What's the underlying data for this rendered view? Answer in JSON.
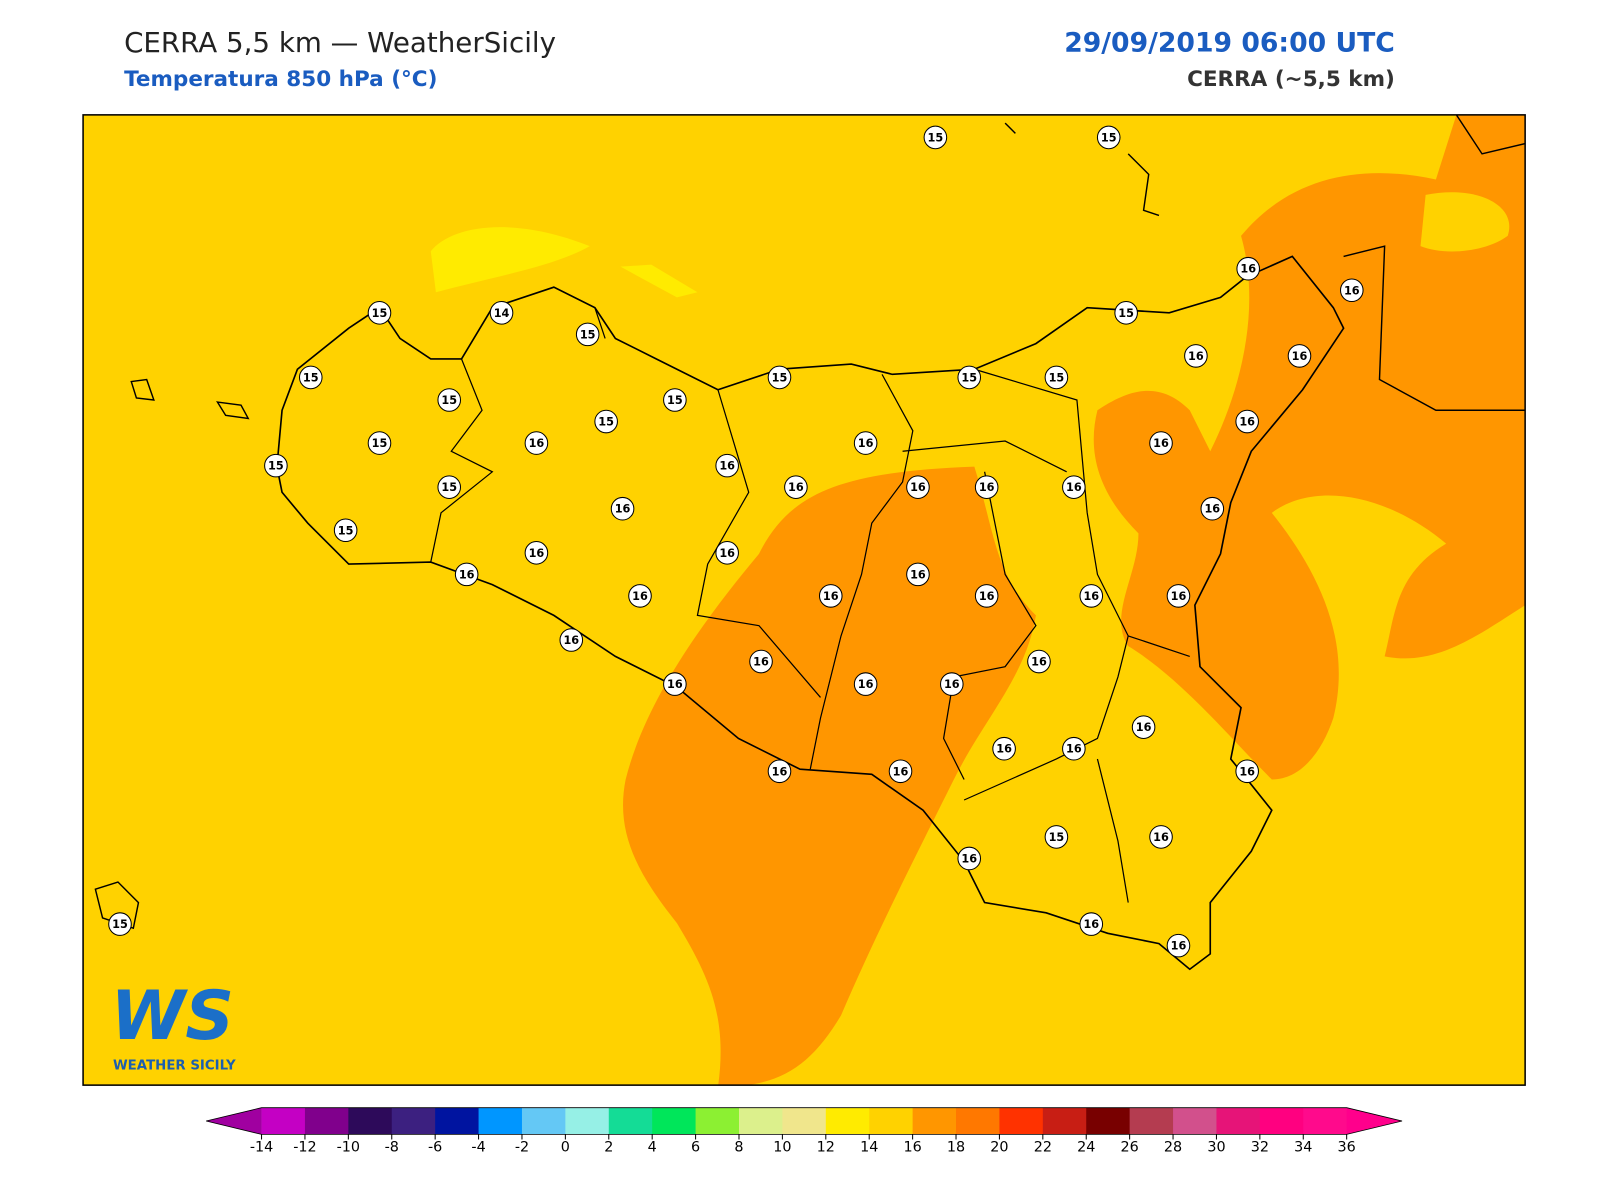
{
  "header": {
    "title": "CERRA 5,5 km — WeatherSicily",
    "subtitle": "Temperatura 850 hPa (°C)",
    "date": "29/09/2019 06:00 UTC",
    "model": "CERRA (~5,5 km)"
  },
  "logo": {
    "mark": "WS",
    "name": "WEATHER SICILY"
  },
  "stations": [
    15,
    15,
    16,
    16,
    15,
    14,
    15,
    15,
    16,
    16,
    15,
    15,
    15,
    15,
    15,
    15,
    15,
    16,
    15,
    16,
    16,
    16,
    15,
    16,
    15,
    16,
    16,
    16,
    16,
    16,
    16,
    15,
    16,
    16,
    16,
    16,
    16,
    16,
    16,
    16,
    16,
    16,
    16,
    16,
    16,
    16,
    16,
    16,
    16,
    16,
    16,
    16,
    16,
    15,
    16,
    16,
    15,
    16,
    16
  ],
  "colorbar": {
    "ticks": [
      -14,
      -12,
      -10,
      -8,
      -6,
      -4,
      -2,
      0,
      2,
      4,
      6,
      8,
      10,
      12,
      14,
      16,
      18,
      20,
      22,
      24,
      26,
      28,
      30,
      32,
      34,
      36
    ],
    "colors": [
      "#c400c4",
      "#80008c",
      "#2d0a5a",
      "#3c2080",
      "#0014a0",
      "#0096ff",
      "#64c8f5",
      "#96f0e6",
      "#14dc96",
      "#00e65a",
      "#8cf032",
      "#dcf08c",
      "#f0e68c",
      "#ffeb00",
      "#ffd200",
      "#ff9600",
      "#ff7800",
      "#ff3200",
      "#c81e14",
      "#780000",
      "#b43c50",
      "#d2508c",
      "#e61478",
      "#ff0080",
      "#ff0a8c"
    ],
    "extend_low": "#a000a0",
    "extend_high": "#ff008c"
  }
}
